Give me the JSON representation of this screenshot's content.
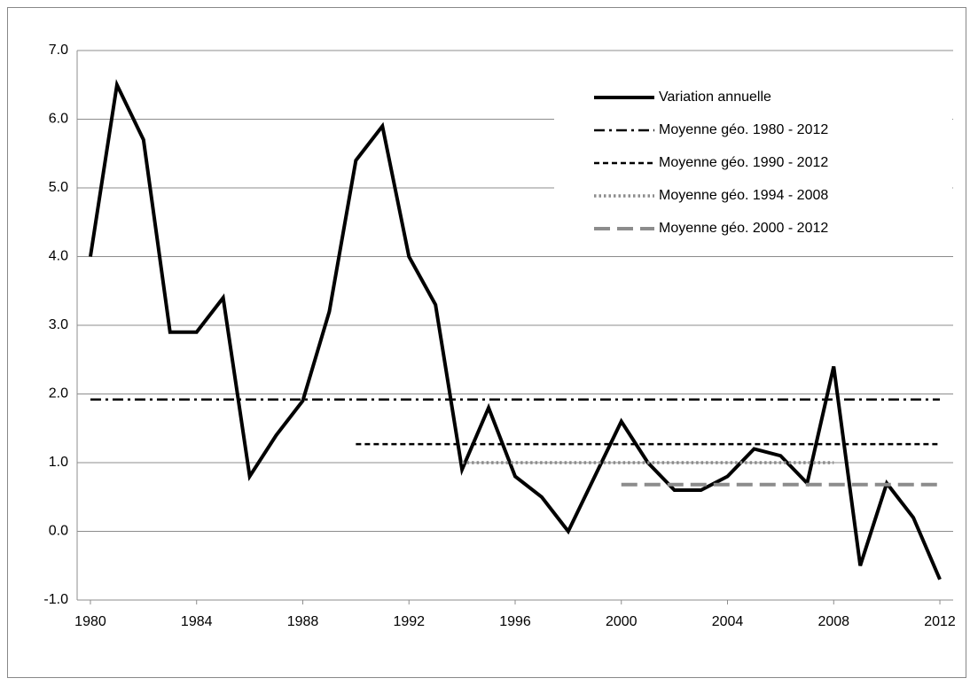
{
  "chart_data": {
    "type": "line",
    "series": [
      {
        "name": "Variation annuelle",
        "color": "#000000",
        "dash": "solid",
        "width": 4,
        "x": [
          1980,
          1981,
          1982,
          1983,
          1984,
          1985,
          1986,
          1987,
          1988,
          1989,
          1990,
          1991,
          1992,
          1993,
          1994,
          1995,
          1996,
          1997,
          1998,
          1999,
          2000,
          2001,
          2002,
          2003,
          2004,
          2005,
          2006,
          2007,
          2008,
          2009,
          2010,
          2011,
          2012
        ],
        "values": [
          4.0,
          6.5,
          5.7,
          2.9,
          2.9,
          3.4,
          0.8,
          1.4,
          1.9,
          3.2,
          5.4,
          5.9,
          4.0,
          3.3,
          0.9,
          1.8,
          0.8,
          0.5,
          0.0,
          0.8,
          1.6,
          1.0,
          0.6,
          0.6,
          0.8,
          1.2,
          1.1,
          0.7,
          2.4,
          -0.5,
          0.7,
          0.2,
          -0.7
        ]
      },
      {
        "name": "Moyenne géo. 1980 - 2012",
        "color": "#000000",
        "dash": "dashdot",
        "width": 2.5,
        "x": [
          1980,
          2012
        ],
        "values": [
          1.92,
          1.92
        ]
      },
      {
        "name": "Moyenne géo. 1990 - 2012",
        "color": "#000000",
        "dash": "dashed",
        "width": 2.5,
        "x": [
          1990,
          2012
        ],
        "values": [
          1.27,
          1.27
        ]
      },
      {
        "name": "Moyenne géo. 1994 - 2008",
        "color": "#8c8c8c",
        "dash": "dotted",
        "width": 3.5,
        "x": [
          1994,
          2008
        ],
        "values": [
          1.0,
          1.0
        ]
      },
      {
        "name": "Moyenne géo. 2000 - 2012",
        "color": "#8c8c8c",
        "dash": "longdash",
        "width": 4,
        "x": [
          2000,
          2012
        ],
        "values": [
          0.68,
          0.68
        ]
      }
    ],
    "xlim": [
      1979.5,
      2012.5
    ],
    "xticks": [
      1980,
      1984,
      1988,
      1992,
      1996,
      2000,
      2004,
      2008,
      2012
    ],
    "ylim": [
      -1,
      7
    ],
    "yticks": [
      {
        "value": -1,
        "label": "-1.0"
      },
      {
        "value": 0,
        "label": "0.0"
      },
      {
        "value": 1,
        "label": "1.0"
      },
      {
        "value": 2,
        "label": "2.0"
      },
      {
        "value": 3,
        "label": "3.0"
      },
      {
        "value": 4,
        "label": "4.0"
      },
      {
        "value": 5,
        "label": "5.0"
      },
      {
        "value": 6,
        "label": "6.0"
      },
      {
        "value": 7,
        "label": "7.0"
      }
    ],
    "grid": true,
    "legend": "top-right"
  }
}
